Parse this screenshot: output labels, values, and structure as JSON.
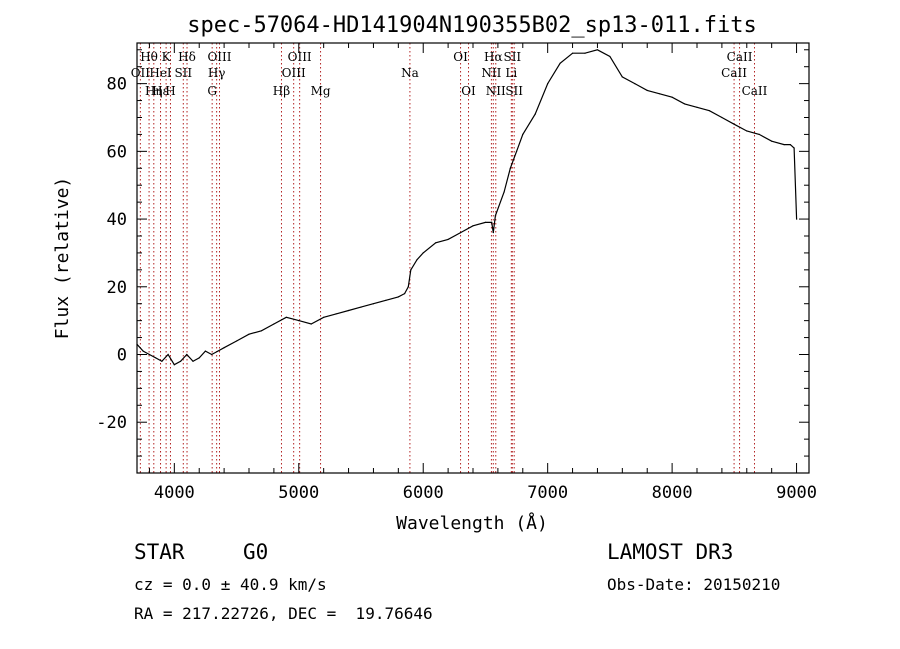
{
  "chart_data": {
    "type": "line",
    "title": "spec-57064-HD141904N190355B02_sp13-011.fits",
    "xlabel": "Wavelength (Å)",
    "ylabel": "Flux (relative)",
    "xlim": [
      3700,
      9100
    ],
    "ylim": [
      -35,
      92
    ],
    "xticks": [
      4000,
      5000,
      6000,
      7000,
      8000,
      9000
    ],
    "yticks": [
      -20,
      0,
      20,
      40,
      60,
      80
    ],
    "series": [
      {
        "name": "flux",
        "x": [
          3700,
          3750,
          3800,
          3850,
          3900,
          3950,
          4000,
          4050,
          4100,
          4150,
          4200,
          4250,
          4300,
          4350,
          4400,
          4500,
          4600,
          4700,
          4800,
          4900,
          5000,
          5100,
          5200,
          5300,
          5400,
          5500,
          5600,
          5700,
          5800,
          5850,
          5880,
          5900,
          5950,
          6000,
          6100,
          6200,
          6300,
          6400,
          6500,
          6550,
          6563,
          6580,
          6650,
          6700,
          6750,
          6800,
          6900,
          7000,
          7100,
          7200,
          7300,
          7400,
          7500,
          7600,
          7700,
          7800,
          7900,
          8000,
          8100,
          8200,
          8300,
          8400,
          8500,
          8600,
          8700,
          8800,
          8900,
          8950,
          8980,
          9000
        ],
        "y": [
          3,
          1,
          0,
          -1,
          -2,
          0,
          -3,
          -2,
          0,
          -2,
          -1,
          1,
          0,
          1,
          2,
          4,
          6,
          7,
          9,
          11,
          10,
          9,
          11,
          12,
          13,
          14,
          15,
          16,
          17,
          18,
          20,
          25,
          28,
          30,
          33,
          34,
          36,
          38,
          39,
          39,
          36,
          41,
          48,
          55,
          60,
          65,
          71,
          80,
          86,
          89,
          89,
          90,
          88,
          82,
          80,
          78,
          77,
          76,
          74,
          73,
          72,
          70,
          68,
          66,
          65,
          63,
          62,
          62,
          61,
          40
        ]
      }
    ],
    "line_markers": [
      {
        "label": "Hθ",
        "x": 3797,
        "row": 1
      },
      {
        "label": "OII",
        "x": 3727,
        "row": 2
      },
      {
        "label": "Hη",
        "x": 3835,
        "row": 3
      },
      {
        "label": "HeI",
        "x": 3889,
        "row": 2
      },
      {
        "label": "Hε",
        "x": 3889,
        "row": 3
      },
      {
        "label": "K",
        "x": 3934,
        "row": 1
      },
      {
        "label": "H",
        "x": 3969,
        "row": 3
      },
      {
        "label": "SII",
        "x": 4072,
        "row": 2
      },
      {
        "label": "Hδ",
        "x": 4102,
        "row": 1
      },
      {
        "label": "OIII",
        "x": 4363,
        "row": 1
      },
      {
        "label": "Hγ",
        "x": 4340,
        "row": 2
      },
      {
        "label": "G",
        "x": 4304,
        "row": 3
      },
      {
        "label": "Hβ",
        "x": 4861,
        "row": 3
      },
      {
        "label": "OIII",
        "x": 5007,
        "row": 1
      },
      {
        "label": "OIII",
        "x": 4959,
        "row": 2
      },
      {
        "label": "Mg",
        "x": 5175,
        "row": 3
      },
      {
        "label": "Na",
        "x": 5893,
        "row": 2
      },
      {
        "label": "OI",
        "x": 6300,
        "row": 1
      },
      {
        "label": "OI",
        "x": 6364,
        "row": 3
      },
      {
        "label": "Hα",
        "x": 6563,
        "row": 1
      },
      {
        "label": "NII",
        "x": 6548,
        "row": 2
      },
      {
        "label": "NII",
        "x": 6583,
        "row": 3
      },
      {
        "label": "SII",
        "x": 6716,
        "row": 1
      },
      {
        "label": "Li",
        "x": 6708,
        "row": 2
      },
      {
        "label": "SII",
        "x": 6731,
        "row": 3
      },
      {
        "label": "CaII",
        "x": 8542,
        "row": 1
      },
      {
        "label": "CaII",
        "x": 8498,
        "row": 2
      },
      {
        "label": "CaII",
        "x": 8662,
        "row": 3
      }
    ]
  },
  "info": {
    "object_class": "STAR",
    "subclass": "G0",
    "survey": "LAMOST DR3",
    "cz": "cz = 0.0 ± 40.9 km/s",
    "obs_date": "Obs-Date: 20150210",
    "coords": "RA = 217.22726, DEC =  19.76646"
  },
  "colors": {
    "line_marker": "#b22222",
    "spectrum": "#000000"
  }
}
